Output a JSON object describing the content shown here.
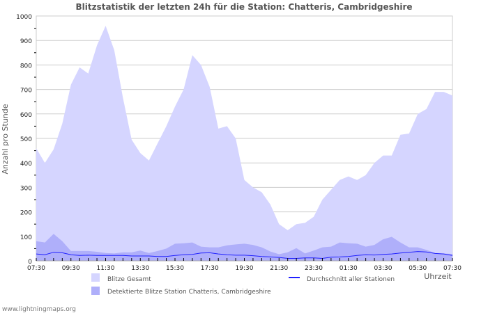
{
  "chart_data": {
    "type": "area",
    "title": "Blitzstatistik der letzten 24h für die Station: Chatteris, Cambridgeshire",
    "ylabel": "Anzahl pro Stunde",
    "xlabel": "Uhrzeit",
    "ylim": [
      0,
      1000
    ],
    "yticks": [
      "0",
      "100",
      "200",
      "300",
      "400",
      "500",
      "600",
      "700",
      "800",
      "900",
      "1000"
    ],
    "xticks": [
      "07:30",
      "09:30",
      "11:30",
      "13:30",
      "15:30",
      "17:30",
      "19:30",
      "21:30",
      "23:30",
      "01:30",
      "03:30",
      "05:30",
      "07:30"
    ],
    "x_step_minutes": 30,
    "series": [
      {
        "name": "Blitze Gesamt",
        "color": "#d5d5ff",
        "kind": "area",
        "values": [
          460,
          400,
          455,
          560,
          720,
          790,
          765,
          880,
          960,
          860,
          665,
          495,
          440,
          410,
          480,
          550,
          630,
          700,
          840,
          800,
          710,
          540,
          550,
          500,
          330,
          300,
          280,
          230,
          150,
          125,
          150,
          155,
          180,
          250,
          290,
          330,
          345,
          330,
          350,
          400,
          430,
          430,
          515,
          520,
          600,
          620,
          690,
          690,
          675
        ]
      },
      {
        "name": "Detektierte Blitze Station Chatteris, Cambridgeshire",
        "color": "#afaffa",
        "kind": "area",
        "values": [
          80,
          75,
          110,
          80,
          40,
          40,
          40,
          37,
          32,
          30,
          35,
          35,
          42,
          32,
          40,
          50,
          70,
          72,
          75,
          58,
          55,
          55,
          63,
          67,
          70,
          65,
          55,
          38,
          27,
          35,
          52,
          30,
          42,
          55,
          58,
          75,
          72,
          70,
          58,
          65,
          88,
          98,
          75,
          55,
          55,
          45,
          32,
          30,
          28
        ]
      },
      {
        "name": "Durchschnitt aller Stationen",
        "color": "#2020ff",
        "kind": "line",
        "values": [
          28,
          25,
          35,
          33,
          25,
          22,
          23,
          22,
          22,
          22,
          22,
          20,
          20,
          20,
          18,
          18,
          22,
          25,
          26,
          32,
          33,
          28,
          25,
          23,
          23,
          21,
          18,
          16,
          14,
          10,
          10,
          12,
          12,
          10,
          15,
          16,
          18,
          22,
          25,
          24,
          26,
          28,
          32,
          35,
          38,
          36,
          30,
          28,
          22
        ]
      }
    ]
  },
  "footer": "www.lightningmaps.org"
}
